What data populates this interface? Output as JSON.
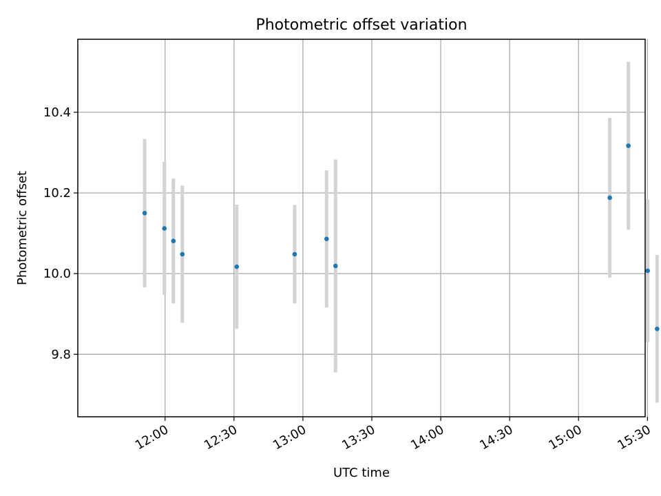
{
  "chart_data": {
    "type": "scatter",
    "title": "Photometric offset variation",
    "xlabel": "UTC time",
    "ylabel": "Photometric offset",
    "grid": true,
    "x_unit": "minutes since 00:00 UTC",
    "xlim": [
      682,
      929
    ],
    "ylim": [
      9.645,
      10.581
    ],
    "x_ticks": [
      {
        "value": 720,
        "label": "12:00"
      },
      {
        "value": 750,
        "label": "12:30"
      },
      {
        "value": 780,
        "label": "13:00"
      },
      {
        "value": 810,
        "label": "13:30"
      },
      {
        "value": 840,
        "label": "14:00"
      },
      {
        "value": 870,
        "label": "14:30"
      },
      {
        "value": 900,
        "label": "15:00"
      },
      {
        "value": 930,
        "label": "15:30"
      }
    ],
    "y_ticks": [
      {
        "value": 9.8,
        "label": "9.8"
      },
      {
        "value": 10.0,
        "label": "10.0"
      },
      {
        "value": 10.2,
        "label": "10.2"
      },
      {
        "value": 10.4,
        "label": "10.4"
      }
    ],
    "series": [
      {
        "name": "Photometric offset",
        "marker_color": "#1f77b4",
        "errorbar_color": "#d3d3d3",
        "points": [
          {
            "x": 711.1,
            "y": 10.15,
            "err": 0.184
          },
          {
            "x": 719.7,
            "y": 10.112,
            "err": 0.165
          },
          {
            "x": 723.6,
            "y": 10.081,
            "err": 0.155
          },
          {
            "x": 727.5,
            "y": 10.048,
            "err": 0.17
          },
          {
            "x": 751.2,
            "y": 10.017,
            "err": 0.154
          },
          {
            "x": 776.4,
            "y": 10.048,
            "err": 0.122
          },
          {
            "x": 790.3,
            "y": 10.086,
            "err": 0.17
          },
          {
            "x": 794.2,
            "y": 10.019,
            "err": 0.264
          },
          {
            "x": 913.6,
            "y": 10.188,
            "err": 0.198
          },
          {
            "x": 921.7,
            "y": 10.317,
            "err": 0.208
          },
          {
            "x": 930.1,
            "y": 10.007,
            "err": 0.177
          },
          {
            "x": 934.2,
            "y": 9.863,
            "err": 0.183
          }
        ]
      }
    ]
  }
}
